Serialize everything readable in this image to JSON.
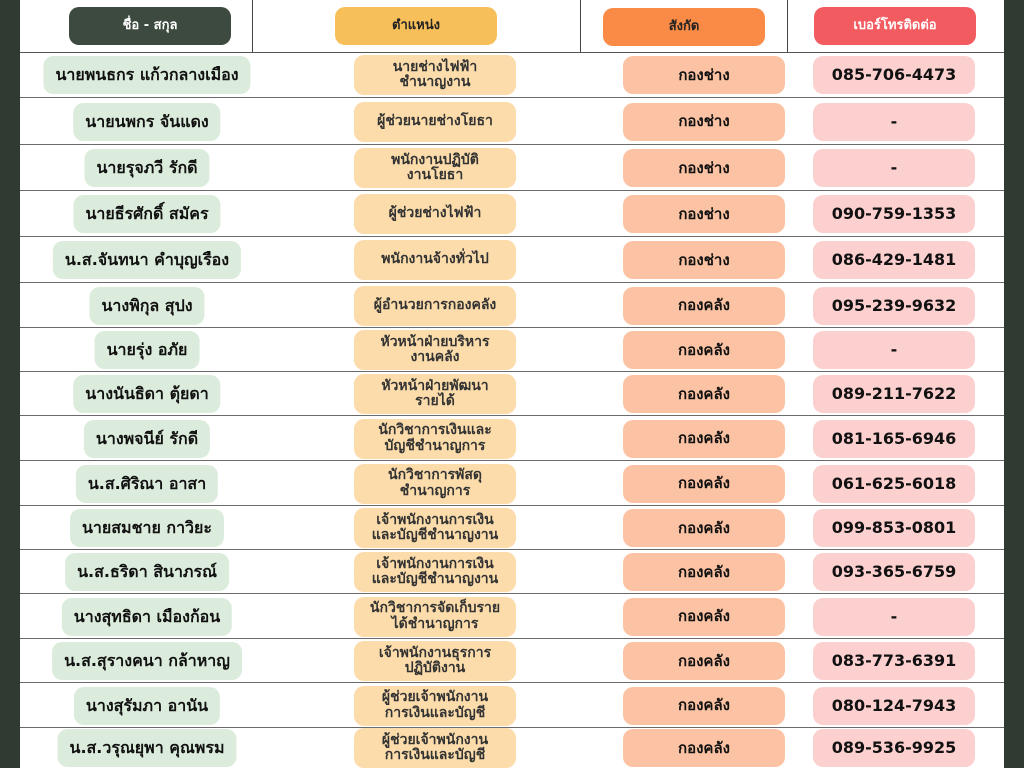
{
  "headers": {
    "name": "ชื่อ - สกุล",
    "position": "ตำแหน่ง",
    "department": "สังกัด",
    "phone": "เบอร์โทรติดต่อ"
  },
  "colors": {
    "background": "#2e3a32",
    "name_header": "#3d4a3f",
    "position_header": "#f7bf5a",
    "department_header": "#f98b46",
    "phone_header": "#f25b60",
    "name_cell": "#dcecdc",
    "position_cell": "#fbdcaa",
    "department_cell": "#fbc3a3",
    "phone_cell": "#fdd0d0"
  },
  "rows": [
    {
      "name": "นายพนธกร  แก้วกลางเมือง",
      "position": "นายช่างไฟฟ้า\nชำนาญงาน",
      "department": "กองช่าง",
      "phone": "085-706-4473"
    },
    {
      "name": "นายนพกร จันแดง",
      "position": "ผู้ช่วยนายช่างโยธา",
      "department": "กองช่าง",
      "phone": "-"
    },
    {
      "name": "นายรุจภวี รักดี",
      "position": "พนักงานปฏิบัติ\nงานโยธา",
      "department": "กองช่าง",
      "phone": "-"
    },
    {
      "name": "นายธีรศักดิ์ สมัคร",
      "position": "ผู้ช่วยช่างไฟฟ้า",
      "department": "กองช่าง",
      "phone": "090-759-1353"
    },
    {
      "name": "น.ส.จันทนา คำบุญเรือง",
      "position": "พนักงานจ้างทั่วไป",
      "department": "กองช่าง",
      "phone": "086-429-1481"
    },
    {
      "name": "นางพิกุล สุปง",
      "position": "ผู้อำนวยการกองคลัง",
      "department": "กองคลัง",
      "phone": "095-239-9632"
    },
    {
      "name": "นายรุ่ง อภัย",
      "position": "หัวหน้าฝ่ายบริหาร\nงานคลัง",
      "department": "กองคลัง",
      "phone": "-"
    },
    {
      "name": "นางนันธิดา ตุ้ยดา",
      "position": "หัวหน้าฝ่ายพัฒนา\nรายได้",
      "department": "กองคลัง",
      "phone": "089-211-7622"
    },
    {
      "name": "นางพจนีย์ รักดี",
      "position": "นักวิชาการเงินและ\nบัญชีชำนาญการ",
      "department": "กองคลัง",
      "phone": "081-165-6946"
    },
    {
      "name": "น.ส.ศิริณา อาสา",
      "position": "นักวิชาการพัสดุ\nชำนาญการ",
      "department": "กองคลัง",
      "phone": "061-625-6018"
    },
    {
      "name": "นายสมชาย กาวิยะ",
      "position": "เจ้าพนักงานการเงิน\nและบัญชีชำนาญงาน",
      "department": "กองคลัง",
      "phone": "099-853-0801"
    },
    {
      "name": "น.ส.ธริดา สินาภรณ์",
      "position": "เจ้าพนักงานการเงิน\nและบัญชีชำนาญงาน",
      "department": "กองคลัง",
      "phone": "093-365-6759"
    },
    {
      "name": "นางสุทธิดา เมืองก้อน",
      "position": "นักวิชาการจัดเก็บราย\nได้ชำนาญการ",
      "department": "กองคลัง",
      "phone": "-"
    },
    {
      "name": "น.ส.สุรางคนา กล้าหาญ",
      "position": "เจ้าพนักงานธุรการ\nปฏิบัติงาน",
      "department": "กองคลัง",
      "phone": "083-773-6391"
    },
    {
      "name": "นางสุรัมภา อานัน",
      "position": "ผู้ช่วยเจ้าพนักงาน\nการเงินและบัญชี",
      "department": "กองคลัง",
      "phone": "080-124-7943"
    },
    {
      "name": "น.ส.วรุณยุพา  คุณพรม",
      "position": "ผู้ช่วยเจ้าพนักงาน\nการเงินและบัญชี",
      "department": "กองคลัง",
      "phone": "089-536-9925"
    }
  ]
}
